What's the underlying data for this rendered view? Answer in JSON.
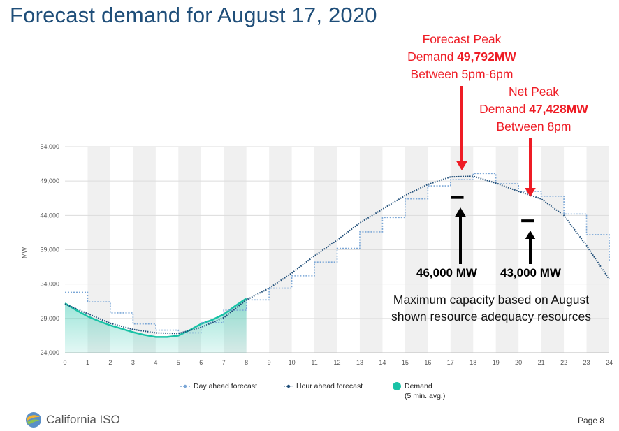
{
  "slide": {
    "title": "Forecast demand for August 17, 2020",
    "page": "Page 8",
    "logo_text": "California ISO"
  },
  "annotations": {
    "forecast_peak": {
      "line1": "Forecast Peak",
      "line2_prefix": "Demand ",
      "line2_value": "49,792MW",
      "line3": "Between 5pm-6pm"
    },
    "net_peak": {
      "line1": "Net Peak",
      "line2_prefix": "Demand ",
      "line2_value": "47,428MW",
      "line3": "Between 8pm"
    },
    "capacity_left": "46,000 MW",
    "capacity_right": "43,000 MW",
    "capacity_note": "Maximum capacity based on August shown resource adequacy resources",
    "capacity_levels_mw": [
      46000,
      43000
    ],
    "capacity_level_hours": [
      17.3,
      20.4
    ]
  },
  "colors": {
    "title": "#1f4e79",
    "annotation_red": "#ee1c25",
    "day_ahead": "#7aa6d6",
    "hour_ahead": "#1f4e79",
    "demand": "#19c2a6"
  },
  "chart_data": {
    "type": "line",
    "ylabel": "MW",
    "xlabel": "",
    "xlim": [
      0,
      24
    ],
    "ylim": [
      24000,
      54000
    ],
    "y_ticks": [
      "24,000",
      "29,000",
      "34,000",
      "39,000",
      "44,000",
      "49,000",
      "54,000"
    ],
    "x_ticks": [
      "0",
      "1",
      "2",
      "3",
      "4",
      "5",
      "6",
      "7",
      "8",
      "9",
      "10",
      "11",
      "12",
      "13",
      "14",
      "15",
      "16",
      "17",
      "18",
      "19",
      "20",
      "21",
      "22",
      "23",
      "24"
    ],
    "legend": [
      "Day ahead forecast",
      "Hour ahead forecast",
      "Demand",
      "(5 min. avg.)"
    ],
    "legend_position": "bottom",
    "grid": true,
    "series": [
      {
        "name": "Day ahead forecast",
        "style": "stepped-dotted",
        "x": [
          0,
          1,
          2,
          3,
          4,
          5,
          6,
          7,
          8,
          9,
          10,
          11,
          12,
          13,
          14,
          15,
          16,
          17,
          18,
          19,
          20,
          21,
          22,
          23,
          24
        ],
        "y": [
          32800,
          31400,
          29800,
          28200,
          27300,
          26900,
          28400,
          30200,
          31700,
          33400,
          35200,
          37200,
          39200,
          41600,
          43700,
          46400,
          48300,
          49200,
          50100,
          48600,
          47500,
          46800,
          44200,
          41200,
          37300
        ]
      },
      {
        "name": "Hour ahead forecast",
        "style": "dotted",
        "x": [
          0,
          1,
          2,
          3,
          4,
          5,
          6,
          7,
          8,
          9,
          10,
          11,
          12,
          13,
          14,
          15,
          16,
          17,
          18,
          19,
          20,
          21,
          22,
          23,
          24
        ],
        "y": [
          31100,
          29700,
          28300,
          27400,
          26900,
          26800,
          27700,
          29100,
          31700,
          33400,
          35600,
          38100,
          40400,
          42900,
          44900,
          46900,
          48500,
          49600,
          49700,
          48700,
          47500,
          46400,
          44000,
          39600,
          34700
        ]
      },
      {
        "name": "Demand",
        "style": "solid-area",
        "x": [
          0,
          0.5,
          1,
          1.5,
          2,
          2.5,
          3,
          3.5,
          4,
          4.5,
          5,
          5.5,
          6,
          6.5,
          7,
          7.5,
          8
        ],
        "y": [
          31200,
          30200,
          29300,
          28600,
          28000,
          27500,
          27000,
          26600,
          26300,
          26300,
          26500,
          27300,
          28200,
          28800,
          29600,
          30800,
          31900
        ]
      }
    ]
  }
}
